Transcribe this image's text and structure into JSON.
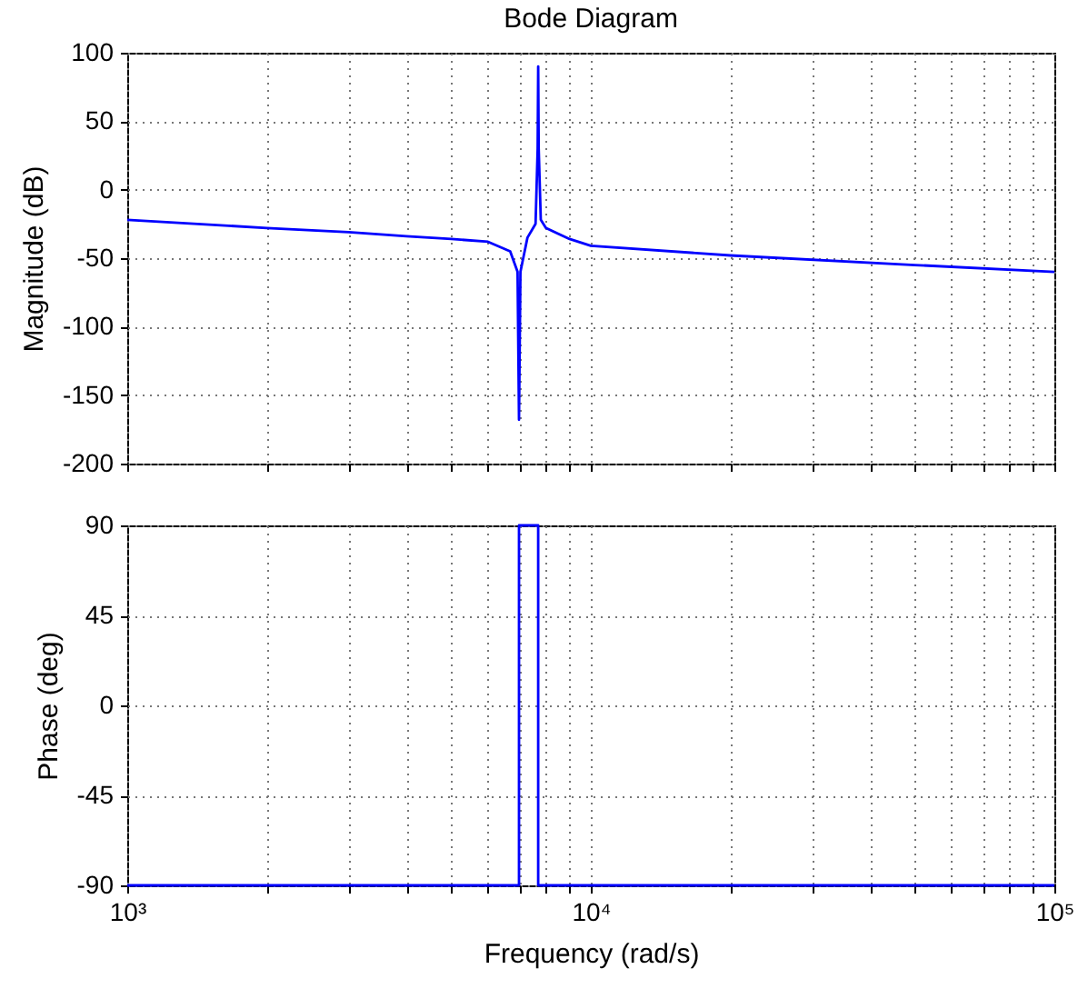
{
  "chart_data": [
    {
      "type": "line",
      "title": "Bode Diagram",
      "ylabel": "Magnitude (dB)",
      "log": "x",
      "grid": true,
      "tick_labels": "y",
      "xlim": [
        1000,
        100000
      ],
      "ylim": [
        -200,
        100
      ],
      "yticks": [
        -200,
        -150,
        -100,
        -50,
        0,
        50,
        100
      ],
      "xticks": [
        1000,
        2000,
        3000,
        4000,
        5000,
        6000,
        7000,
        8000,
        9000,
        10000,
        20000,
        30000,
        40000,
        50000,
        60000,
        70000,
        80000,
        90000,
        100000
      ],
      "series": [
        {
          "color": "#0000ff",
          "x": [
            1000,
            2000,
            3000,
            4000,
            5000,
            6000,
            6700,
            6950,
            7000,
            7050,
            7300,
            7600,
            7680,
            7700,
            7720,
            7800,
            8000,
            9000,
            10000,
            20000,
            50000,
            100000
          ],
          "values": [
            -22,
            -28,
            -31,
            -34,
            -36,
            -38,
            -45,
            -60,
            -168,
            -60,
            -35,
            -25,
            30,
            90,
            30,
            -22,
            -28,
            -36,
            -41,
            -48,
            -55,
            -60
          ]
        }
      ]
    },
    {
      "type": "line",
      "xlabel": "Frequency  (rad/s)",
      "ylabel": "Phase (deg)",
      "log": "x",
      "grid": true,
      "xlim": [
        1000,
        100000
      ],
      "ylim": [
        -90,
        90
      ],
      "yticks": [
        -90,
        -45,
        0,
        45,
        90
      ],
      "xticks": [
        {
          "value": 1000,
          "label": "10³"
        },
        {
          "value": 2000,
          "label": null
        },
        {
          "value": 3000,
          "label": null
        },
        {
          "value": 4000,
          "label": null
        },
        {
          "value": 5000,
          "label": null
        },
        {
          "value": 6000,
          "label": null
        },
        {
          "value": 7000,
          "label": null
        },
        {
          "value": 8000,
          "label": null
        },
        {
          "value": 9000,
          "label": null
        },
        {
          "value": 10000,
          "label": "10⁴"
        },
        {
          "value": 20000,
          "label": null
        },
        {
          "value": 30000,
          "label": null
        },
        {
          "value": 40000,
          "label": null
        },
        {
          "value": 50000,
          "label": null
        },
        {
          "value": 60000,
          "label": null
        },
        {
          "value": 70000,
          "label": null
        },
        {
          "value": 80000,
          "label": null
        },
        {
          "value": 90000,
          "label": null
        },
        {
          "value": 100000,
          "label": "10⁵"
        }
      ],
      "series": [
        {
          "color": "#0000ff",
          "x": [
            1000,
            7000,
            7000,
            7700,
            7700,
            100000
          ],
          "values": [
            -90,
            -90,
            90,
            90,
            -90,
            -90
          ]
        }
      ]
    }
  ]
}
